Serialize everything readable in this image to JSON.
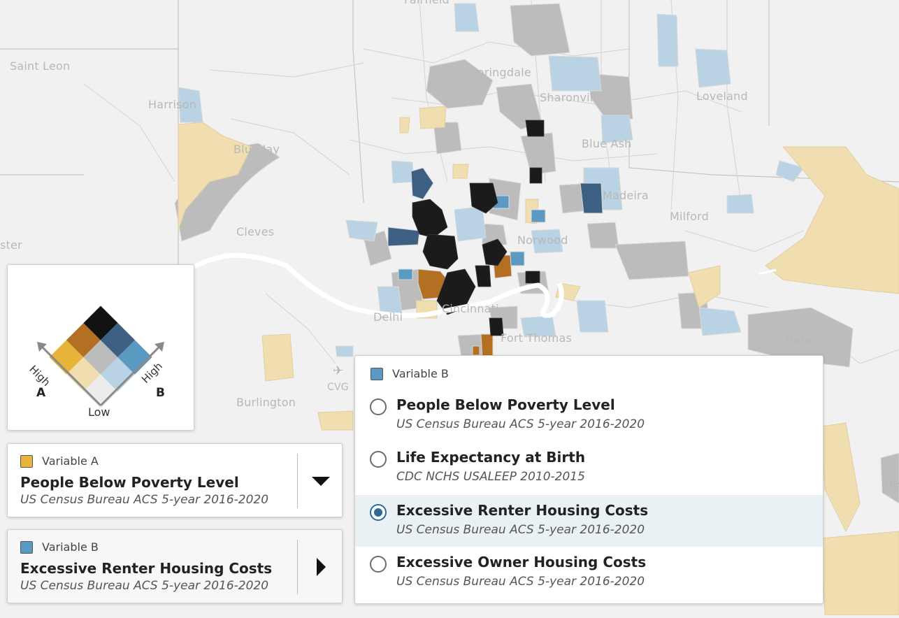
{
  "map": {
    "place_labels": [
      {
        "name": "Fairfield"
      },
      {
        "name": "Saint Leon"
      },
      {
        "name": "Springdale"
      },
      {
        "name": "Harrison"
      },
      {
        "name": "Sharonville"
      },
      {
        "name": "Loveland"
      },
      {
        "name": "Blue Jay"
      },
      {
        "name": "Blue Ash"
      },
      {
        "name": "Madeira"
      },
      {
        "name": "Milford"
      },
      {
        "name": "Cleves"
      },
      {
        "name": "ster"
      },
      {
        "name": "Norwood"
      },
      {
        "name": "Cincinnati"
      },
      {
        "name": "Delhi"
      },
      {
        "name": "Fort Thomas"
      },
      {
        "name": "Batavia"
      },
      {
        "name": "CVG"
      },
      {
        "name": "Burlington"
      },
      {
        "name": "Be"
      }
    ],
    "colors": {
      "background": "#f1f1f1",
      "low": "#e8e8e8",
      "a_high": "#e8b43a",
      "a_mid": "#f0deb0",
      "b_high": "#5a9ac2",
      "b_mid": "#b9d3e4",
      "mid": "#bcbcbc",
      "a_high_b_mid": "#b36f22",
      "b_high_a_mid": "#3d5f82",
      "high_both": "#111111",
      "river": "#ffffff"
    }
  },
  "legend": {
    "label_a": "A",
    "label_b": "B",
    "label_high_a": "High",
    "label_high_b": "High",
    "label_low": "Low"
  },
  "variable_a": {
    "heading": "Variable A",
    "title": "People Below Poverty Level",
    "source": "US Census Bureau ACS 5-year 2016-2020",
    "swatch_color": "#e8b43a",
    "button_icon": "caret-down-icon"
  },
  "variable_b": {
    "heading": "Variable B",
    "title": "Excessive Renter Housing Costs",
    "source": "US Census Bureau ACS 5-year 2016-2020",
    "swatch_color": "#5a9ac2",
    "button_icon": "caret-right-icon"
  },
  "dropdown": {
    "heading": "Variable B",
    "swatch_color": "#5a9ac2",
    "options": [
      {
        "title": "People Below Poverty Level",
        "source": "US Census Bureau ACS 5-year 2016-2020",
        "selected": false
      },
      {
        "title": "Life Expectancy at Birth",
        "source": "CDC NCHS USALEEP 2010-2015",
        "selected": false
      },
      {
        "title": "Excessive Renter Housing Costs",
        "source": "US Census Bureau ACS 5-year 2016-2020",
        "selected": true
      },
      {
        "title": "Excessive Owner Housing Costs",
        "source": "US Census Bureau ACS 5-year 2016-2020",
        "selected": false
      }
    ]
  }
}
